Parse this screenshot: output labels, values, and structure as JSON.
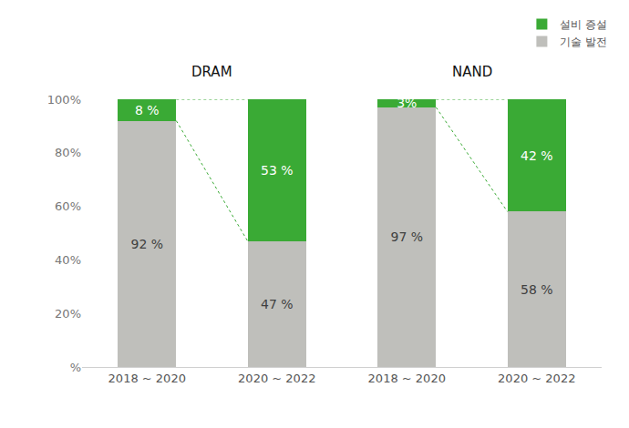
{
  "chart_data": [
    {
      "type": "bar",
      "title": "DRAM",
      "categories": [
        "2018 ~ 2020",
        "2020 ~ 2022"
      ],
      "series": [
        {
          "name": "기술 발전",
          "color": "#bfbfbb",
          "values": [
            92,
            47
          ],
          "value_labels": [
            "92 %",
            "47 %"
          ]
        },
        {
          "name": "설비 증설",
          "color": "#3aaa35",
          "values": [
            8,
            53
          ],
          "value_labels": [
            "8 %",
            "53 %"
          ]
        }
      ],
      "ylim": [
        0,
        100
      ],
      "yticks": [
        {
          "value": 0,
          "label": "%"
        },
        {
          "value": 20,
          "label": "20%"
        },
        {
          "value": 40,
          "label": "40%"
        },
        {
          "value": 60,
          "label": "60%"
        },
        {
          "value": 80,
          "label": "80%"
        },
        {
          "value": 100,
          "label": "100%"
        }
      ],
      "stacked": true,
      "data_labels": true,
      "grid": false
    },
    {
      "type": "bar",
      "title": "NAND",
      "categories": [
        "2018 ~ 2020",
        "2020 ~ 2022"
      ],
      "series": [
        {
          "name": "기술 발전",
          "color": "#bfbfbb",
          "values": [
            97,
            58
          ],
          "value_labels": [
            "97 %",
            "58 %"
          ]
        },
        {
          "name": "설비 증설",
          "color": "#3aaa35",
          "values": [
            3,
            42
          ],
          "value_labels": [
            "3%",
            "42 %"
          ]
        }
      ],
      "ylim": [
        0,
        100
      ],
      "yticks": [
        {
          "value": 0,
          "label": "%"
        },
        {
          "value": 20,
          "label": "20%"
        },
        {
          "value": 40,
          "label": "40%"
        },
        {
          "value": 60,
          "label": "60%"
        },
        {
          "value": 80,
          "label": "80%"
        },
        {
          "value": 100,
          "label": "100%"
        }
      ],
      "stacked": true,
      "data_labels": true,
      "grid": false,
      "tick_labels": "x",
      "legend": "top right"
    }
  ]
}
